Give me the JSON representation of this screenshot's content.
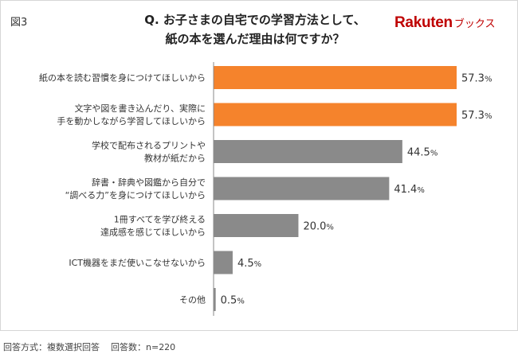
{
  "figure_label": "図3",
  "question": {
    "line1": "Q. お子さまの自宅での学習方法として、",
    "line2": "紙の本を選んだ理由は何ですか？"
  },
  "logo": {
    "brand": "Rakuten",
    "suffix": "ブックス"
  },
  "footnote": {
    "method": "回答方式：複数選択回答",
    "count": "回答数：n=220"
  },
  "colors": {
    "highlight": "#f5832c",
    "normal": "#8a8a8a",
    "axis": "#8a8a8a"
  },
  "chart_data": {
    "type": "bar",
    "orientation": "horizontal",
    "title": "Q. お子さまの自宅での学習方法として、紙の本を選んだ理由は何ですか？",
    "unit": "%",
    "xlim": [
      0,
      57.3
    ],
    "grid": false,
    "categories": [
      [
        "紙の本を読む習慣を身につけてほしいから"
      ],
      [
        "文字や図を書き込んだり、実際に",
        "手を動かしながら学習してほしいから"
      ],
      [
        "学校で配布されるプリントや",
        "教材が紙だから"
      ],
      [
        "辞書・辞典や図鑑から自分で",
        "“調べる力”を身につけてほしいから"
      ],
      [
        "1冊すべてを学び終える",
        "達成感を感じてほしいから"
      ],
      [
        "ICT機器をまだ使いこなせないから"
      ],
      [
        "その他"
      ]
    ],
    "values": [
      57.3,
      57.3,
      44.5,
      41.4,
      20.0,
      4.5,
      0.5
    ],
    "highlighted": [
      true,
      true,
      false,
      false,
      false,
      false,
      false
    ]
  }
}
